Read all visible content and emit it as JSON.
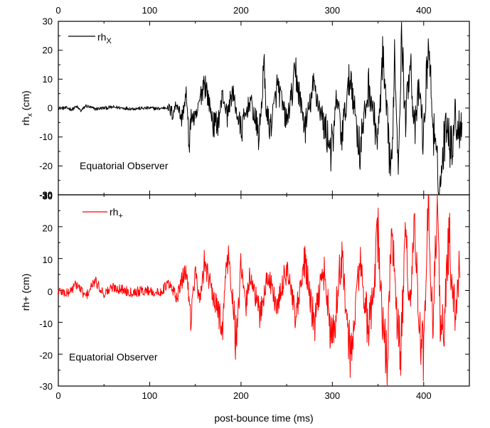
{
  "chart_data": [
    {
      "type": "line",
      "panel": "top",
      "title": "",
      "xlabel": "",
      "ylabel": "rh_x (cm)",
      "ylabel_main": "rh",
      "ylabel_sub": "x",
      "ylabel_rest": " (cm)",
      "xlim": [
        0,
        450
      ],
      "ylim": [
        -30,
        30
      ],
      "x_ticks": [
        "0",
        "100",
        "200",
        "300",
        "400"
      ],
      "y_ticks": [
        "30",
        "20",
        "10",
        "0",
        "-10",
        "-20",
        "-30"
      ],
      "legend": {
        "main": "rh",
        "sub": "X",
        "position": "top-left"
      },
      "annotation": "Equatorial Observer",
      "series": [
        {
          "name": "rh_X",
          "color": "#000000",
          "x": [
            0,
            10,
            15,
            20,
            25,
            30,
            40,
            60,
            80,
            100,
            110,
            120,
            125,
            130,
            135,
            140,
            143,
            146,
            150,
            155,
            160,
            165,
            170,
            175,
            180,
            185,
            190,
            200,
            210,
            220,
            225,
            228,
            232,
            240,
            250,
            260,
            270,
            280,
            290,
            300,
            305,
            310,
            320,
            330,
            340,
            350,
            355,
            360,
            365,
            368,
            372,
            376,
            380,
            385,
            390,
            395,
            400,
            405,
            410,
            414,
            418,
            422,
            426,
            430,
            434,
            438,
            442
          ],
          "values": [
            0,
            0,
            -0.5,
            0.5,
            -1,
            0.8,
            -0.3,
            0.3,
            -0.2,
            0,
            -0.2,
            0.3,
            -2,
            2,
            -4,
            5,
            -12,
            -2,
            -5,
            3,
            10,
            2,
            -6,
            -5,
            5,
            -3,
            6,
            -8,
            3,
            -10,
            14,
            -2,
            -7,
            8,
            -5,
            12,
            -7,
            8,
            -5,
            -15,
            5,
            -10,
            12,
            -15,
            8,
            -12,
            17,
            -5,
            -25,
            20,
            -18,
            26,
            -5,
            20,
            -10,
            8,
            -12,
            24,
            -5,
            -20,
            -28,
            -12,
            -3,
            -15,
            -2,
            -8,
            -3
          ]
        }
      ]
    },
    {
      "type": "line",
      "panel": "bottom",
      "title": "",
      "xlabel": "post-bounce time (ms)",
      "ylabel": "rh+ (cm)",
      "xlim": [
        0,
        450
      ],
      "ylim": [
        -30,
        30
      ],
      "x_ticks": [
        "0",
        "100",
        "200",
        "300",
        "400"
      ],
      "y_ticks": [
        "30",
        "20",
        "10",
        "0",
        "-10",
        "-20",
        "-30"
      ],
      "legend": {
        "main": "rh",
        "sub": "+",
        "position": "top-left"
      },
      "annotation": "Equatorial Observer",
      "series": [
        {
          "name": "rh_+",
          "color": "#ff0000",
          "x": [
            0,
            10,
            20,
            30,
            40,
            50,
            60,
            80,
            100,
            110,
            120,
            130,
            140,
            145,
            150,
            155,
            160,
            170,
            180,
            185,
            190,
            195,
            200,
            205,
            210,
            220,
            230,
            240,
            250,
            260,
            270,
            280,
            290,
            300,
            310,
            320,
            330,
            340,
            350,
            355,
            360,
            365,
            370,
            375,
            380,
            385,
            390,
            395,
            400,
            405,
            410,
            415,
            418,
            422,
            428,
            432,
            436,
            440
          ],
          "values": [
            0,
            -1,
            2,
            -2,
            3,
            -1,
            1,
            -0.5,
            0,
            -1,
            2,
            -2,
            7,
            -8,
            6,
            -5,
            10,
            -3,
            -10,
            12,
            0,
            -18,
            8,
            -6,
            6,
            -8,
            5,
            -6,
            8,
            -10,
            10,
            -12,
            8,
            -18,
            12,
            -23,
            10,
            -15,
            18,
            -10,
            -23,
            22,
            -8,
            -20,
            18,
            -5,
            22,
            -12,
            -20,
            25,
            -10,
            28,
            -8,
            -12,
            18,
            -5,
            -6,
            12
          ]
        }
      ]
    }
  ]
}
